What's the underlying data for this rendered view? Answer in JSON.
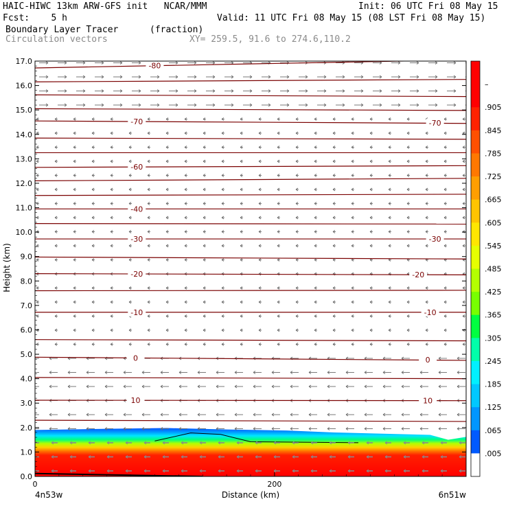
{
  "header": {
    "line1_left": "HAIC-HIWC 13km ARW-GFS init   NCAR/MMM",
    "line1_right": "Init: 06 UTC Fri 08 May 15",
    "line2_left": "Fcst:    5 h",
    "line2_right": "Valid: 11 UTC Fri 08 May 15 (08 LST Fri 08 May 15)",
    "line3_left": "Boundary Layer Tracer",
    "line3_mid": "(fraction)",
    "line4_left": "Circulation vectors",
    "line4_mid": "XY= 259.5, 91.6 to 274.6,110.2"
  },
  "chart_data": {
    "type": "heatmap",
    "xlabel": "Distance (km)",
    "ylabel": "Height (km)",
    "xlim": [
      0,
      360
    ],
    "ylim": [
      0,
      17
    ],
    "x_ticks": [
      "0",
      "200"
    ],
    "x_end_labels": {
      "left": "4n53w",
      "right": "6n51w"
    },
    "y_ticks": [
      "0.0",
      "1.0",
      "2.0",
      "3.0",
      "4.0",
      "5.0",
      "6.0",
      "7.0",
      "8.0",
      "9.0",
      "10.0",
      "11.0",
      "12.0",
      "13.0",
      "14.0",
      "15.0",
      "16.0",
      "17.0"
    ],
    "colorbar": {
      "labels": [
        "–",
        ".905",
        ".845",
        ".785",
        ".725",
        ".665",
        ".605",
        ".545",
        ".485",
        ".425",
        ".365",
        ".305",
        ".245",
        ".185",
        ".125",
        ".065",
        ".005"
      ],
      "colors": [
        "#ff0000",
        "#ff0000",
        "#ff2200",
        "#ff5000",
        "#ff7800",
        "#ff9e00",
        "#ffc400",
        "#ffe600",
        "#e6ff00",
        "#b4ff00",
        "#78ff00",
        "#00ff40",
        "#00ffaa",
        "#00f0ff",
        "#00c8ff",
        "#0096ff",
        "#005aff",
        "#ffffff"
      ]
    },
    "isotherms": [
      {
        "label": "-80",
        "y0": 16.72,
        "y1": 17.05
      },
      {
        "label": "",
        "y0": 16.15,
        "y1": 16.25
      },
      {
        "label": "",
        "y0": 15.62,
        "y1": 15.55
      },
      {
        "label": "",
        "y0": 15.05,
        "y1": 14.98
      },
      {
        "label": "-70",
        "y0": 14.55,
        "y1": 14.45
      },
      {
        "label": "",
        "y0": 13.85,
        "y1": 13.8
      },
      {
        "label": "",
        "y0": 13.25,
        "y1": 13.25
      },
      {
        "label": "-60",
        "y0": 12.65,
        "y1": 12.72
      },
      {
        "label": "",
        "y0": 12.1,
        "y1": 12.2
      },
      {
        "label": "",
        "y0": 11.5,
        "y1": 11.55
      },
      {
        "label": "-40",
        "y0": 10.95,
        "y1": 10.95
      },
      {
        "label": "",
        "y0": 10.35,
        "y1": 10.33
      },
      {
        "label": "-30",
        "y0": 9.72,
        "y1": 9.72
      },
      {
        "label": "",
        "y0": 8.98,
        "y1": 8.9
      },
      {
        "label": "-20",
        "y0": 8.3,
        "y1": 8.25
      },
      {
        "label": "",
        "y0": 7.6,
        "y1": 7.62
      },
      {
        "label": "-10",
        "y0": 6.72,
        "y1": 6.72
      },
      {
        "label": "",
        "y0": 5.6,
        "y1": 5.55
      },
      {
        "label": "0",
        "y0": 4.88,
        "y1": 4.75
      },
      {
        "label": "",
        "y0": 4.05,
        "y1": 4.0
      },
      {
        "label": "10",
        "y0": 3.12,
        "y1": 3.1
      },
      {
        "label": "",
        "y0": 2.3,
        "y1": 2.25
      }
    ],
    "isotherm_extra_labels": [
      {
        "label": "-70",
        "x": 334,
        "y": 14.47
      },
      {
        "label": "-30",
        "x": 334,
        "y": 9.72
      },
      {
        "label": "-20",
        "x": 320,
        "y": 8.26
      },
      {
        "label": "-10",
        "x": 330,
        "y": 6.72
      },
      {
        "label": "0",
        "x": 328,
        "y": 4.77
      },
      {
        "label": "10",
        "x": 328,
        "y": 3.1
      }
    ],
    "boundary_layer_top_km": [
      {
        "x": 0,
        "y": 1.9
      },
      {
        "x": 60,
        "y": 1.95
      },
      {
        "x": 110,
        "y": 1.98
      },
      {
        "x": 160,
        "y": 1.92
      },
      {
        "x": 210,
        "y": 1.88
      },
      {
        "x": 250,
        "y": 1.8
      },
      {
        "x": 290,
        "y": 1.75
      },
      {
        "x": 330,
        "y": 1.7
      },
      {
        "x": 345,
        "y": 1.5
      },
      {
        "x": 360,
        "y": 1.62
      }
    ]
  }
}
